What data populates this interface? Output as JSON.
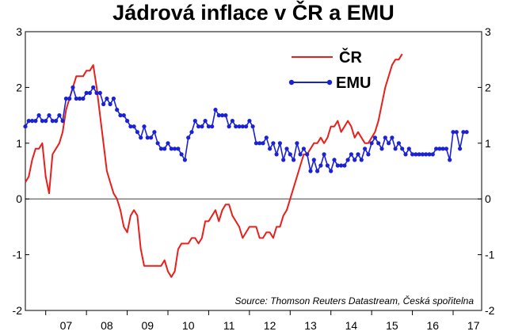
{
  "title": "Jádrová inflace v ČR a EMU",
  "source": "Source: Thomson Reuters Datastream, Česká spořitelna",
  "colors": {
    "cr": "#e8201c",
    "emu": "#1a22d4",
    "axis": "#000000",
    "zero": "#555555"
  },
  "chart_data": {
    "type": "line",
    "title": "Jádrová inflace v ČR a EMU",
    "ylim": [
      -2,
      3
    ],
    "y_ticks": [
      -2,
      -1,
      0,
      1,
      2,
      3
    ],
    "x_range": [
      2006.5,
      2017.7
    ],
    "x_ticks": [
      {
        "label": "07",
        "x": 2007.0
      },
      {
        "label": "08",
        "x": 2008.0
      },
      {
        "label": "09",
        "x": 2009.0
      },
      {
        "label": "10",
        "x": 2010.0
      },
      {
        "label": "11",
        "x": 2011.0
      },
      {
        "label": "12",
        "x": 2012.0
      },
      {
        "label": "13",
        "x": 2013.0
      },
      {
        "label": "14",
        "x": 2014.0
      },
      {
        "label": "15",
        "x": 2015.0
      },
      {
        "label": "16",
        "x": 2016.0
      },
      {
        "label": "17",
        "x": 2017.0
      }
    ],
    "legend": "top-right",
    "series": [
      {
        "name": "ČR",
        "marker": "none",
        "x_start": 2006.5,
        "step": 0.083333,
        "values": [
          0.3,
          0.4,
          0.7,
          0.9,
          0.9,
          1.0,
          0.4,
          0.1,
          0.8,
          0.9,
          1.0,
          1.2,
          1.6,
          1.8,
          2.0,
          2.2,
          2.2,
          2.2,
          2.3,
          2.3,
          2.4,
          2.0,
          1.5,
          1.0,
          0.5,
          0.3,
          0.1,
          0.0,
          -0.2,
          -0.5,
          -0.6,
          -0.3,
          -0.2,
          -0.3,
          -0.9,
          -1.2,
          -1.2,
          -1.2,
          -1.2,
          -1.2,
          -1.2,
          -1.1,
          -1.3,
          -1.4,
          -1.3,
          -0.9,
          -0.8,
          -0.8,
          -0.8,
          -0.7,
          -0.7,
          -0.8,
          -0.7,
          -0.4,
          -0.4,
          -0.3,
          -0.2,
          -0.4,
          -0.2,
          -0.1,
          -0.1,
          -0.3,
          -0.4,
          -0.5,
          -0.7,
          -0.6,
          -0.5,
          -0.5,
          -0.5,
          -0.7,
          -0.7,
          -0.6,
          -0.6,
          -0.7,
          -0.5,
          -0.5,
          -0.3,
          -0.2,
          0.0,
          0.2,
          0.4,
          0.6,
          0.8,
          0.8,
          0.9,
          1.0,
          1.0,
          1.1,
          1.0,
          1.1,
          1.3,
          1.3,
          1.4,
          1.2,
          1.3,
          1.4,
          1.3,
          1.1,
          1.2,
          1.1,
          1.0,
          1.0,
          1.1,
          1.2,
          1.4,
          1.7,
          2.0,
          2.2,
          2.4,
          2.5,
          2.5,
          2.6
        ]
      },
      {
        "name": "EMU",
        "marker": "circle",
        "x_start": 2006.5,
        "step": 0.083333,
        "values": [
          1.3,
          1.4,
          1.4,
          1.4,
          1.5,
          1.4,
          1.4,
          1.5,
          1.4,
          1.4,
          1.5,
          1.4,
          1.8,
          1.8,
          2.0,
          1.8,
          1.8,
          1.8,
          1.9,
          1.9,
          2.0,
          1.9,
          1.9,
          1.7,
          1.8,
          1.7,
          1.8,
          1.6,
          1.5,
          1.5,
          1.4,
          1.3,
          1.3,
          1.2,
          1.1,
          1.3,
          1.1,
          1.1,
          1.2,
          1.0,
          0.9,
          0.9,
          1.0,
          0.9,
          0.9,
          0.9,
          0.8,
          0.7,
          1.1,
          1.2,
          1.4,
          1.3,
          1.3,
          1.4,
          1.3,
          1.3,
          1.6,
          1.5,
          1.5,
          1.5,
          1.3,
          1.4,
          1.3,
          1.3,
          1.3,
          1.3,
          1.4,
          1.3,
          1.0,
          1.0,
          1.0,
          1.1,
          0.9,
          1.0,
          0.8,
          1.0,
          0.7,
          0.9,
          0.8,
          0.7,
          1.0,
          0.8,
          0.9,
          0.8,
          0.5,
          0.7,
          0.5,
          0.6,
          0.8,
          0.6,
          0.5,
          0.7,
          0.6,
          0.6,
          0.6,
          0.7,
          0.8,
          0.7,
          0.8,
          0.7,
          0.9,
          0.8,
          1.0,
          1.1,
          1.0,
          0.9,
          1.1,
          1.0,
          1.1,
          0.9,
          1.0,
          0.9,
          0.8,
          0.9,
          0.8,
          0.8,
          0.8,
          0.8,
          0.8,
          0.8,
          0.8,
          0.9,
          0.9,
          0.9,
          0.9,
          0.7,
          1.2,
          1.2,
          0.9,
          1.2,
          1.2
        ]
      }
    ]
  }
}
